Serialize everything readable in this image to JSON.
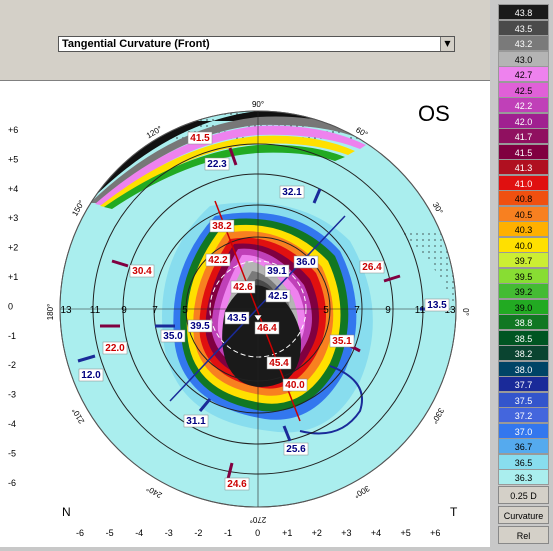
{
  "map": {
    "type_label": "Tangential Curvature (Front)",
    "eye_label": "OS",
    "nasal_label": "N",
    "temporal_label": "T",
    "angle_labels": [
      "90°",
      "60°",
      "30°",
      "0°",
      "330°",
      "300°",
      "270°",
      "240°",
      "210°",
      "180°",
      "150°",
      "120°"
    ],
    "x_ticks": [
      "-6",
      "-5",
      "-4",
      "-3",
      "-2",
      "-1",
      "0",
      "+1",
      "+2",
      "+3",
      "+4",
      "+5",
      "+6"
    ],
    "y_ticks": [
      "+6",
      "+5",
      "+4",
      "+3",
      "+2",
      "+1",
      "0",
      "-1",
      "-2",
      "-3",
      "-4",
      "-5",
      "-6"
    ],
    "ring_labels": [
      "13",
      "11",
      "9",
      "7",
      "5",
      "5",
      "7",
      "9",
      "11",
      "13"
    ],
    "readings": [
      {
        "v": "41.5",
        "c": "#cc0000"
      },
      {
        "v": "22.3",
        "c": "#000080"
      },
      {
        "v": "32.1",
        "c": "#000080"
      },
      {
        "v": "38.2",
        "c": "#cc0000"
      },
      {
        "v": "42.2",
        "c": "#cc0000"
      },
      {
        "v": "39.1",
        "c": "#000080"
      },
      {
        "v": "36.0",
        "c": "#000080"
      },
      {
        "v": "26.4",
        "c": "#cc0000"
      },
      {
        "v": "30.4",
        "c": "#cc0000"
      },
      {
        "v": "42.6",
        "c": "#cc0000"
      },
      {
        "v": "42.5",
        "c": "#000080"
      },
      {
        "v": "43.5",
        "c": "#000080"
      },
      {
        "v": "46.4",
        "c": "#cc0000"
      },
      {
        "v": "39.5",
        "c": "#000080"
      },
      {
        "v": "35.0",
        "c": "#000080"
      },
      {
        "v": "22.0",
        "c": "#cc0000"
      },
      {
        "v": "35.1",
        "c": "#cc0000"
      },
      {
        "v": "45.4",
        "c": "#cc0000"
      },
      {
        "v": "12.0",
        "c": "#000080"
      },
      {
        "v": "40.0",
        "c": "#cc0000"
      },
      {
        "v": "31.1",
        "c": "#000080"
      },
      {
        "v": "25.6",
        "c": "#000080"
      },
      {
        "v": "24.6",
        "c": "#cc0000"
      },
      {
        "v": "13.5",
        "c": "#000080"
      }
    ]
  },
  "scale": {
    "entries": [
      {
        "v": "43.8",
        "c": "#1a1a1a",
        "t": "#ffffff"
      },
      {
        "v": "43.5",
        "c": "#4a4a4a",
        "t": "#ffffff"
      },
      {
        "v": "43.2",
        "c": "#7a7a7a",
        "t": "#ffffff"
      },
      {
        "v": "43.0",
        "c": "#b4b4b4",
        "t": "#000000"
      },
      {
        "v": "42.7",
        "c": "#ee82ee",
        "t": "#000000"
      },
      {
        "v": "42.5",
        "c": "#e060d8",
        "t": "#000000"
      },
      {
        "v": "42.2",
        "c": "#c040b8",
        "t": "#ffffff"
      },
      {
        "v": "42.0",
        "c": "#a02090",
        "t": "#ffffff"
      },
      {
        "v": "41.7",
        "c": "#901060",
        "t": "#ffffff"
      },
      {
        "v": "41.5",
        "c": "#800040",
        "t": "#ffffff"
      },
      {
        "v": "41.3",
        "c": "#b01020",
        "t": "#ffffff"
      },
      {
        "v": "41.0",
        "c": "#e01010",
        "t": "#ffffff"
      },
      {
        "v": "40.8",
        "c": "#f05010",
        "t": "#000000"
      },
      {
        "v": "40.5",
        "c": "#f88020",
        "t": "#000000"
      },
      {
        "v": "40.3",
        "c": "#ffb000",
        "t": "#000000"
      },
      {
        "v": "40.0",
        "c": "#ffe000",
        "t": "#000000"
      },
      {
        "v": "39.7",
        "c": "#ccee33",
        "t": "#000000"
      },
      {
        "v": "39.5",
        "c": "#88dd33",
        "t": "#000000"
      },
      {
        "v": "39.2",
        "c": "#44bb33",
        "t": "#000000"
      },
      {
        "v": "39.0",
        "c": "#22aa22",
        "t": "#000000"
      },
      {
        "v": "38.8",
        "c": "#117722",
        "t": "#ffffff"
      },
      {
        "v": "38.5",
        "c": "#005522",
        "t": "#ffffff"
      },
      {
        "v": "38.2",
        "c": "#0a4430",
        "t": "#ffffff"
      },
      {
        "v": "38.0",
        "c": "#004466",
        "t": "#ffffff"
      },
      {
        "v": "37.7",
        "c": "#1a2a99",
        "t": "#ffffff"
      },
      {
        "v": "37.5",
        "c": "#3355cc",
        "t": "#ffffff"
      },
      {
        "v": "37.2",
        "c": "#4466dd",
        "t": "#ffffff"
      },
      {
        "v": "37.0",
        "c": "#3377ee",
        "t": "#ffffff"
      },
      {
        "v": "36.7",
        "c": "#55aaee",
        "t": "#000000"
      },
      {
        "v": "36.5",
        "c": "#88ddee",
        "t": "#000000"
      },
      {
        "v": "36.3",
        "c": "#aaeeee",
        "t": "#000000"
      }
    ],
    "step_label": "0.25 D",
    "mode_label": "Curvature",
    "rel_label": "Rel"
  }
}
